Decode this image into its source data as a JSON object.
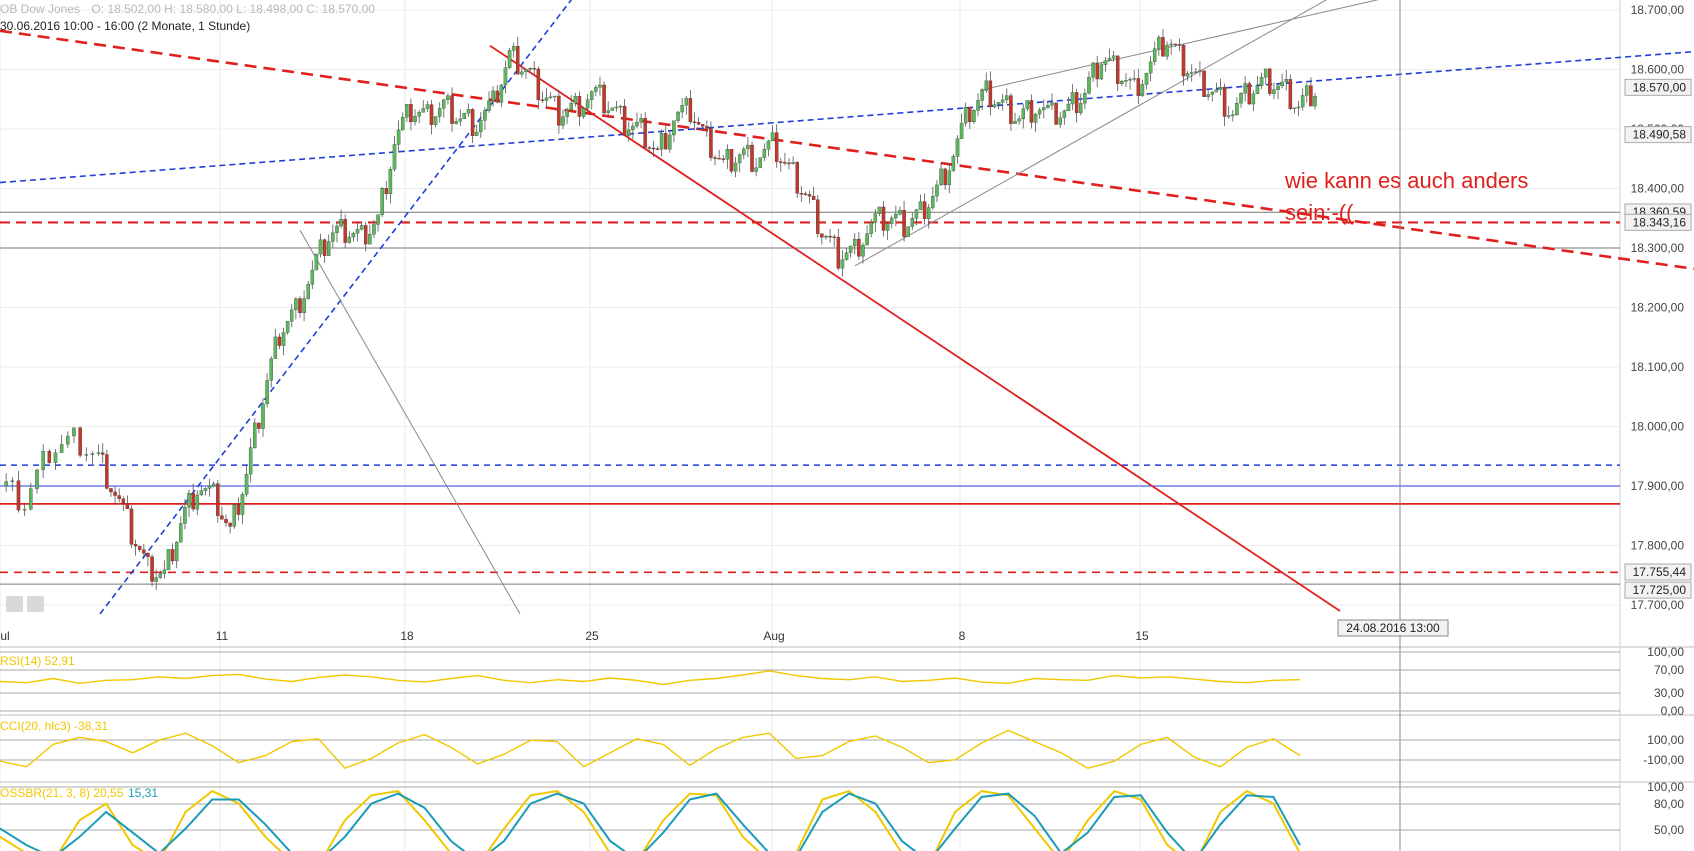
{
  "header": {
    "instrument": "OB Dow Jones",
    "ohlc": "O: 18.502,00   H: 18.580,00   L: 18.498,00   C: 18.570,00",
    "info": "30.06.2016 10:00 - 16:00 (2 Monate, 1 Stunde)"
  },
  "annotation": {
    "line1": "wie kann es auch anders",
    "line2": "sein:-(("
  },
  "colors": {
    "up": "#5cb85c",
    "down": "#c0392b",
    "red": "#e0201d",
    "blue": "#1f3fd8",
    "gray": "#888888",
    "yellow": "#f0c800",
    "teal": "#1a9bb8"
  },
  "chart_data": [
    {
      "type": "line",
      "title": "",
      "panel": "price",
      "y_ticks": [
        "18.700,00",
        "18.600,00",
        "18.500,00",
        "18.400,00",
        "18.300,00",
        "18.200,00",
        "18.100,00",
        "18.000,00",
        "17.900,00",
        "17.800,00",
        "17.700,00"
      ],
      "ylim": [
        17686,
        18724
      ],
      "x_ticks": [
        "Jul",
        "11",
        "18",
        "25",
        "Aug",
        "8",
        "15"
      ],
      "price_labels": [
        "18.570,00",
        "18.490,58",
        "18.360,59",
        "18.343,16",
        "18.300,00",
        "17.755,44",
        "17.725,00"
      ],
      "crosshair_label": "24.08.2016 13:00",
      "close_path": [
        [
          0,
          17900
        ],
        [
          3,
          17870
        ],
        [
          6,
          17960
        ],
        [
          9,
          17980
        ],
        [
          12,
          17950
        ],
        [
          14,
          17890
        ],
        [
          16,
          17820
        ],
        [
          18,
          17760
        ],
        [
          20,
          17750
        ],
        [
          22,
          17840
        ],
        [
          24,
          17900
        ],
        [
          26,
          17880
        ],
        [
          28,
          17820
        ],
        [
          30,
          17920
        ],
        [
          32,
          18050
        ],
        [
          34,
          18160
        ],
        [
          36,
          18200
        ],
        [
          38,
          18260
        ],
        [
          40,
          18320
        ],
        [
          42,
          18330
        ],
        [
          44,
          18320
        ],
        [
          46,
          18350
        ],
        [
          48,
          18480
        ],
        [
          50,
          18530
        ],
        [
          52,
          18520
        ],
        [
          54,
          18540
        ],
        [
          56,
          18520
        ],
        [
          58,
          18510
        ],
        [
          60,
          18540
        ],
        [
          62,
          18620
        ],
        [
          64,
          18600
        ],
        [
          66,
          18560
        ],
        [
          68,
          18530
        ],
        [
          70,
          18540
        ],
        [
          72,
          18560
        ],
        [
          74,
          18540
        ],
        [
          76,
          18510
        ],
        [
          78,
          18500
        ],
        [
          80,
          18460
        ],
        [
          82,
          18520
        ],
        [
          84,
          18530
        ],
        [
          86,
          18480
        ],
        [
          88,
          18440
        ],
        [
          90,
          18460
        ],
        [
          92,
          18450
        ],
        [
          94,
          18470
        ],
        [
          96,
          18430
        ],
        [
          98,
          18390
        ],
        [
          100,
          18330
        ],
        [
          102,
          18290
        ],
        [
          104,
          18300
        ],
        [
          106,
          18340
        ],
        [
          108,
          18350
        ],
        [
          110,
          18340
        ],
        [
          112,
          18360
        ],
        [
          114,
          18400
        ],
        [
          116,
          18460
        ],
        [
          118,
          18530
        ],
        [
          120,
          18560
        ],
        [
          122,
          18540
        ],
        [
          124,
          18520
        ],
        [
          126,
          18540
        ],
        [
          128,
          18520
        ],
        [
          130,
          18530
        ],
        [
          132,
          18560
        ],
        [
          134,
          18620
        ],
        [
          136,
          18600
        ],
        [
          138,
          18570
        ],
        [
          140,
          18610
        ],
        [
          142,
          18650
        ],
        [
          144,
          18610
        ],
        [
          146,
          18580
        ],
        [
          148,
          18560
        ],
        [
          150,
          18530
        ],
        [
          152,
          18560
        ],
        [
          154,
          18580
        ],
        [
          156,
          18570
        ],
        [
          158,
          18540
        ],
        [
          160,
          18570
        ]
      ]
    },
    {
      "type": "line",
      "panel": "RSI",
      "label": "RSI(14)",
      "value": "52,91",
      "y_ticks": [
        "100,00",
        "70,00",
        "30,00",
        "0,00"
      ],
      "ylim": [
        0,
        100
      ],
      "values": [
        50,
        48,
        55,
        47,
        52,
        53,
        58,
        55,
        60,
        62,
        54,
        50,
        57,
        61,
        58,
        52,
        49,
        55,
        60,
        52,
        48,
        53,
        50,
        56,
        52,
        45,
        52,
        55,
        61,
        68,
        60,
        55,
        53,
        58,
        50,
        52,
        56,
        49,
        47,
        55,
        53,
        52,
        60,
        56,
        58,
        54,
        50,
        48,
        52,
        53
      ]
    },
    {
      "type": "line",
      "panel": "CCI",
      "label": "CCI(20, hlc3)",
      "value": "-38,31",
      "y_ticks": [
        "100,00",
        "-100,00"
      ],
      "values": [
        -80,
        -120,
        40,
        90,
        60,
        -20,
        70,
        120,
        30,
        -90,
        -40,
        60,
        80,
        -130,
        -60,
        50,
        110,
        20,
        -100,
        -30,
        70,
        60,
        -120,
        -20,
        80,
        40,
        -110,
        10,
        90,
        120,
        -60,
        -40,
        60,
        100,
        20,
        -90,
        -70,
        50,
        140,
        60,
        -20,
        -130,
        -80,
        40,
        90,
        -50,
        -120,
        20,
        80,
        -40
      ]
    },
    {
      "type": "line",
      "panel": "Stochastic",
      "label": "OSSBR(21, 3, 8)",
      "value_k": "20,55",
      "value_d": "15,31",
      "y_ticks": [
        "100,00",
        "80,00",
        "50,00"
      ],
      "k": [
        40,
        20,
        10,
        60,
        80,
        30,
        10,
        70,
        95,
        80,
        40,
        10,
        5,
        60,
        90,
        95,
        60,
        20,
        5,
        50,
        90,
        95,
        70,
        20,
        10,
        60,
        92,
        90,
        40,
        10,
        20,
        85,
        95,
        70,
        20,
        5,
        70,
        95,
        90,
        50,
        10,
        60,
        95,
        85,
        30,
        5,
        70,
        95,
        80,
        20
      ],
      "d": [
        50,
        30,
        15,
        40,
        70,
        45,
        20,
        50,
        85,
        85,
        55,
        20,
        10,
        40,
        80,
        92,
        75,
        35,
        10,
        35,
        80,
        92,
        80,
        35,
        12,
        45,
        85,
        92,
        55,
        20,
        15,
        70,
        92,
        80,
        35,
        10,
        50,
        88,
        92,
        65,
        20,
        45,
        88,
        90,
        45,
        10,
        55,
        90,
        88,
        30
      ]
    }
  ]
}
